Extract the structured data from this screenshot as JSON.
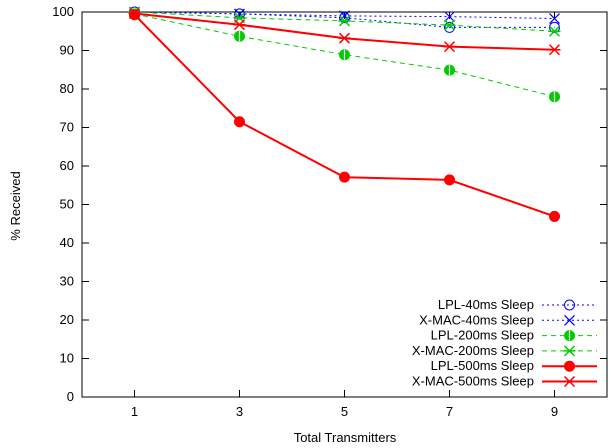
{
  "chart_data": {
    "type": "line",
    "title": "",
    "xlabel": "Total Transmitters",
    "ylabel": "% Received",
    "x": [
      1,
      3,
      5,
      7,
      9
    ],
    "xlim": [
      0,
      10
    ],
    "ylim": [
      0,
      100
    ],
    "xticks": [
      "1",
      "3",
      "5",
      "7",
      "9"
    ],
    "yticks": [
      "0",
      "10",
      "20",
      "30",
      "40",
      "50",
      "60",
      "70",
      "80",
      "90",
      "100"
    ],
    "grid": false,
    "legend_position": "bottom-right",
    "series": [
      {
        "name": "LPL-40ms Sleep",
        "values": [
          100,
          99.5,
          98.5,
          96.0,
          96.0
        ],
        "color": "#0000ff",
        "dash": "2,3",
        "marker": "circle-open",
        "width": 1
      },
      {
        "name": "X-MAC-40ms Sleep",
        "values": [
          100,
          99.5,
          99.0,
          98.8,
          98.3
        ],
        "color": "#0000ff",
        "dash": "2,3",
        "marker": "x",
        "width": 1
      },
      {
        "name": "LPL-200ms Sleep",
        "values": [
          99.5,
          93.7,
          88.9,
          84.9,
          78.0
        ],
        "color": "#00cc00",
        "dash": "5,4",
        "marker": "circle-half",
        "width": 1
      },
      {
        "name": "X-MAC-200ms Sleep",
        "values": [
          100,
          98.5,
          97.7,
          96.6,
          95.0
        ],
        "color": "#00cc00",
        "dash": "5,4",
        "marker": "star",
        "width": 1
      },
      {
        "name": "LPL-500ms Sleep",
        "values": [
          99.3,
          71.5,
          57.1,
          56.4,
          46.9
        ],
        "color": "#ff0000",
        "dash": "",
        "marker": "circle-filled",
        "width": 2
      },
      {
        "name": "X-MAC-500ms Sleep",
        "values": [
          99.6,
          96.7,
          93.2,
          91.0,
          90.2
        ],
        "color": "#ff0000",
        "dash": "",
        "marker": "star",
        "width": 2
      }
    ]
  }
}
